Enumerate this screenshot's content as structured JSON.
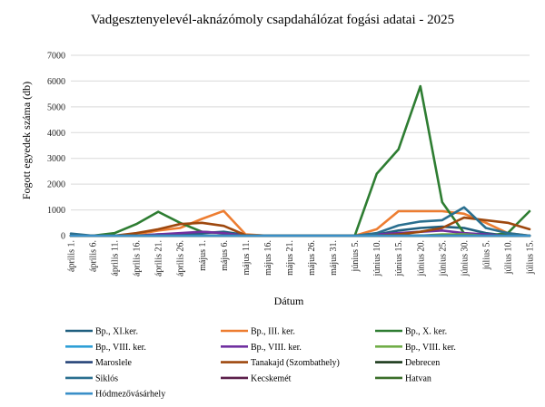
{
  "chart_data": {
    "type": "line",
    "title": "Vadgesztenyelevél-aknázómoly csapdahálózat fogási adatai - 2025",
    "xlabel": "Dátum",
    "ylabel": "Fogott egyedek száma (db)",
    "ylim": [
      0,
      7000
    ],
    "yticks": [
      "0",
      "1000",
      "2000",
      "3000",
      "4000",
      "5000",
      "6000",
      "7000"
    ],
    "grid": "horizontal",
    "legend_position": "bottom",
    "categories": [
      "április 1.",
      "április 6.",
      "április 11.",
      "április 16.",
      "április 21.",
      "április 26.",
      "május 1.",
      "május 6.",
      "május 11.",
      "május 16.",
      "május 21.",
      "május 26.",
      "május 31.",
      "június 5.",
      "június 10.",
      "június 15.",
      "június 20.",
      "június 25.",
      "június 30.",
      "július 5.",
      "július 10.",
      "július 15."
    ],
    "series": [
      {
        "name": "Bp., XI.ker.",
        "color": "#1f5f7f",
        "values": [
          0,
          0,
          0,
          0,
          50,
          60,
          100,
          150,
          30,
          0,
          0,
          0,
          0,
          0,
          50,
          200,
          300,
          350,
          300,
          100,
          0,
          0
        ]
      },
      {
        "name": "Bp., III. ker.",
        "color": "#ed7d31",
        "values": [
          0,
          0,
          0,
          50,
          200,
          300,
          650,
          960,
          50,
          0,
          0,
          0,
          0,
          0,
          250,
          950,
          950,
          950,
          850,
          500,
          100,
          0
        ]
      },
      {
        "name": "Bp., X. ker.",
        "color": "#2e7d32",
        "values": [
          0,
          0,
          100,
          450,
          930,
          500,
          150,
          100,
          0,
          0,
          0,
          0,
          0,
          0,
          2400,
          3350,
          5800,
          1300,
          100,
          0,
          100,
          950
        ]
      },
      {
        "name": "Bp., VIII. ker.",
        "color": "#2e9fd6",
        "values": [
          0,
          0,
          0,
          0,
          0,
          0,
          0,
          0,
          0,
          0,
          0,
          0,
          0,
          0,
          0,
          0,
          0,
          0,
          0,
          0,
          0,
          0
        ]
      },
      {
        "name": "Bp., VIII. ker.",
        "color": "#7030a0",
        "values": [
          0,
          0,
          0,
          0,
          50,
          100,
          150,
          100,
          0,
          0,
          0,
          0,
          0,
          0,
          50,
          100,
          150,
          200,
          100,
          50,
          0,
          0
        ]
      },
      {
        "name": "Bp., VIII. ker.",
        "color": "#70ad47",
        "values": [
          0,
          0,
          0,
          0,
          0,
          0,
          0,
          0,
          0,
          0,
          0,
          0,
          0,
          0,
          0,
          0,
          0,
          50,
          50,
          0,
          0,
          0
        ]
      },
      {
        "name": "Maroslele",
        "color": "#264478",
        "values": [
          0,
          0,
          0,
          0,
          0,
          0,
          0,
          0,
          0,
          0,
          0,
          0,
          0,
          0,
          0,
          0,
          0,
          0,
          0,
          0,
          0,
          0
        ]
      },
      {
        "name": "Tanakajd (Szombathely)",
        "color": "#9e480e",
        "values": [
          0,
          0,
          0,
          100,
          250,
          450,
          500,
          380,
          20,
          0,
          0,
          0,
          0,
          0,
          0,
          50,
          150,
          300,
          700,
          600,
          500,
          250
        ]
      },
      {
        "name": "Debrecen",
        "color": "#1b3a1b",
        "values": [
          0,
          0,
          0,
          0,
          0,
          0,
          0,
          0,
          0,
          0,
          0,
          0,
          0,
          0,
          0,
          0,
          0,
          0,
          0,
          0,
          0,
          0
        ]
      },
      {
        "name": "Siklós",
        "color": "#2a6f8f",
        "values": [
          80,
          0,
          0,
          0,
          0,
          0,
          0,
          0,
          0,
          0,
          0,
          0,
          0,
          0,
          100,
          400,
          550,
          600,
          1100,
          300,
          100,
          0
        ]
      },
      {
        "name": "Kecskemét",
        "color": "#5b1f4a",
        "values": [
          0,
          0,
          0,
          0,
          0,
          0,
          0,
          0,
          0,
          0,
          0,
          0,
          0,
          0,
          0,
          0,
          0,
          0,
          0,
          0,
          0,
          0
        ]
      },
      {
        "name": "Hatvan",
        "color": "#3b6f2a",
        "values": [
          0,
          0,
          0,
          0,
          0,
          0,
          0,
          0,
          0,
          0,
          0,
          0,
          0,
          0,
          0,
          0,
          0,
          0,
          0,
          0,
          0,
          0
        ]
      },
      {
        "name": "Hódmezővásárhely",
        "color": "#3a8fc8",
        "values": [
          0,
          0,
          0,
          0,
          0,
          0,
          0,
          0,
          0,
          0,
          0,
          0,
          0,
          0,
          0,
          0,
          0,
          0,
          0,
          0,
          0,
          0
        ]
      }
    ]
  }
}
